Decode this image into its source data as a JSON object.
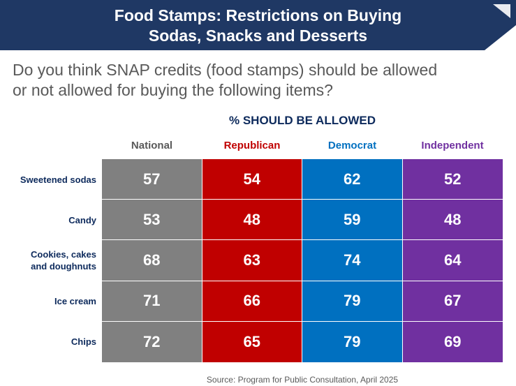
{
  "title_line1": "Food Stamps: Restrictions on Buying",
  "title_line2": "Sodas, Snacks and Desserts",
  "question_line1": "Do you think SNAP credits (food stamps) should be allowed",
  "question_line2": "or not allowed for buying the following items?",
  "source": "Source: Program for Public Consultation, April 2025",
  "colors": {
    "banner": "#1f3864",
    "National": "#808080",
    "Republican": "#c00000",
    "Democrat": "#0070c0",
    "Independent": "#7030a0"
  },
  "chart_data": {
    "type": "table",
    "title": "% SHOULD BE ALLOWED",
    "categories": [
      "Sweetened sodas",
      "Candy",
      "Cookies, cakes and doughnuts",
      "Ice cream",
      "Chips"
    ],
    "category_lines": [
      [
        "Sweetened sodas"
      ],
      [
        "Candy"
      ],
      [
        "Cookies, cakes",
        "and doughnuts"
      ],
      [
        "Ice cream"
      ],
      [
        "Chips"
      ]
    ],
    "series": [
      {
        "name": "National",
        "values": [
          57,
          53,
          68,
          71,
          72
        ]
      },
      {
        "name": "Republican",
        "values": [
          54,
          48,
          63,
          66,
          65
        ]
      },
      {
        "name": "Democrat",
        "values": [
          62,
          59,
          74,
          79,
          79
        ]
      },
      {
        "name": "Independent",
        "values": [
          52,
          48,
          64,
          67,
          69
        ]
      }
    ]
  }
}
